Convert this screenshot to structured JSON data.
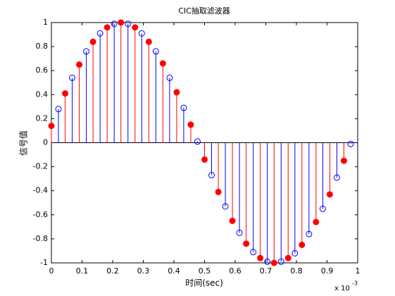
{
  "chart_data": {
    "type": "stem",
    "title": "CIC抽取滤波器",
    "xlabel": "时间(sec)",
    "ylabel": "信号值",
    "annotation": {
      "base": "x 10",
      "exponent": "-3"
    },
    "xlim": [
      0,
      1
    ],
    "xticks": [
      0,
      0.1,
      0.2,
      0.3,
      0.4,
      0.5,
      0.6,
      0.7,
      0.8,
      0.9,
      1
    ],
    "ylim": [
      -1,
      1
    ],
    "yticks": [
      -1,
      -0.8,
      -0.6,
      -0.4,
      -0.2,
      0,
      0.2,
      0.4,
      0.6,
      0.8,
      1
    ],
    "series": [
      {
        "color": "#0000ff",
        "marker": "open",
        "x": [
          0.023,
          0.068,
          0.114,
          0.159,
          0.205,
          0.25,
          0.295,
          0.341,
          0.386,
          0.432,
          0.477,
          0.523,
          0.568,
          0.614,
          0.659,
          0.705,
          0.75,
          0.795,
          0.841,
          0.886,
          0.932,
          0.977
        ],
        "values": [
          0.28,
          0.54,
          0.76,
          0.91,
          0.99,
          0.99,
          0.91,
          0.76,
          0.54,
          0.29,
          0.01,
          -0.27,
          -0.53,
          -0.75,
          -0.91,
          -0.99,
          -0.99,
          -0.92,
          -0.76,
          -0.55,
          -0.29,
          -0.01
        ]
      },
      {
        "color": "#ff0000",
        "marker": "filled",
        "x": [
          0,
          0.045,
          0.091,
          0.136,
          0.182,
          0.227,
          0.273,
          0.318,
          0.364,
          0.409,
          0.455,
          0.5,
          0.545,
          0.591,
          0.636,
          0.682,
          0.727,
          0.773,
          0.818,
          0.864,
          0.909,
          0.955
        ],
        "values": [
          0.14,
          0.41,
          0.65,
          0.84,
          0.96,
          1.0,
          0.96,
          0.84,
          0.66,
          0.42,
          0.15,
          -0.14,
          -0.41,
          -0.65,
          -0.84,
          -0.96,
          -1.0,
          -0.96,
          -0.85,
          -0.66,
          -0.43,
          -0.15
        ]
      }
    ]
  }
}
